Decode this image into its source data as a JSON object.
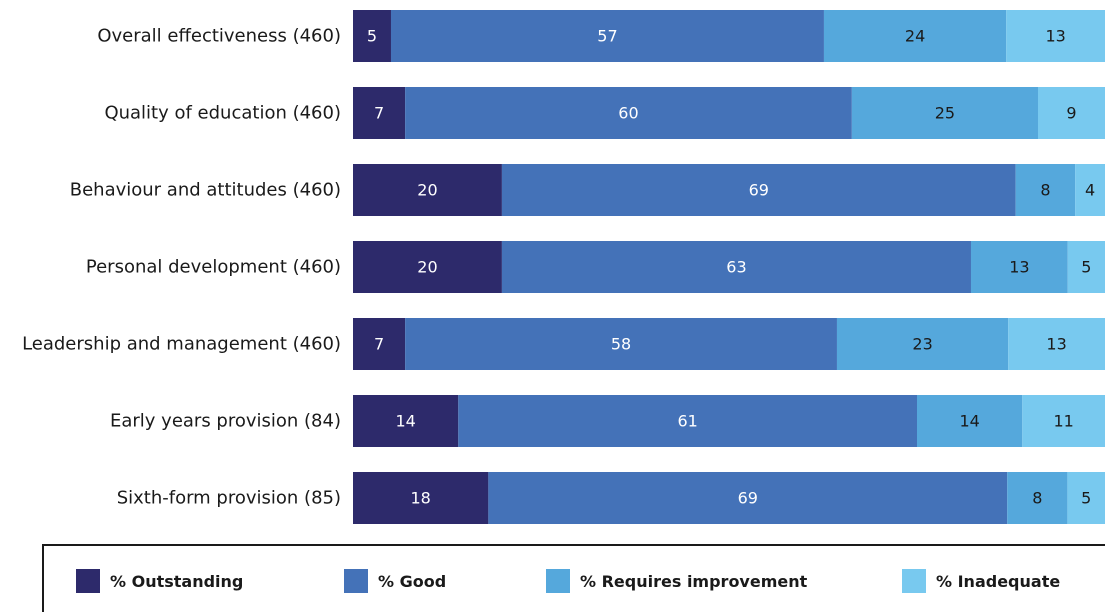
{
  "chart_data": {
    "type": "bar",
    "orientation": "horizontal",
    "stacked": true,
    "categories": [
      "Overall effectiveness (460)",
      "Quality of education (460)",
      "Behaviour and attitudes (460)",
      "Personal development (460)",
      "Leadership and management (460)",
      "Early years provision (84)",
      "Sixth-form provision (85)"
    ],
    "series": [
      {
        "name": "% Outstanding",
        "color": "#2d2a6b",
        "values": [
          5,
          7,
          20,
          20,
          7,
          14,
          18
        ]
      },
      {
        "name": "% Good",
        "color": "#4472b8",
        "values": [
          57,
          60,
          69,
          63,
          58,
          61,
          69
        ]
      },
      {
        "name": "% Requires improvement",
        "color": "#55a8dc",
        "values": [
          24,
          25,
          8,
          13,
          23,
          14,
          8
        ]
      },
      {
        "name": "% Inadequate",
        "color": "#78c9ef",
        "values": [
          13,
          9,
          4,
          5,
          13,
          11,
          5
        ]
      }
    ],
    "grid": false,
    "legend_position": "bottom"
  }
}
